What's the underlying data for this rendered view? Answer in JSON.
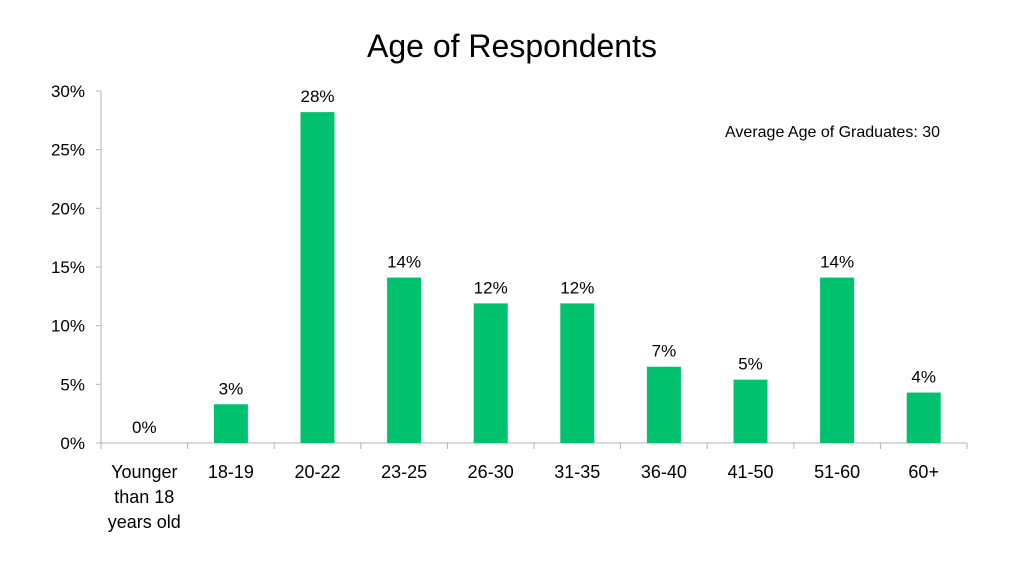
{
  "chart_data": {
    "type": "bar",
    "title": "Age of Respondents",
    "xlabel": "",
    "ylabel": "",
    "ylim": [
      0,
      30
    ],
    "yticks": [
      "0%",
      "5%",
      "10%",
      "15%",
      "20%",
      "25%",
      "30%"
    ],
    "ytick_values": [
      0,
      5,
      10,
      15,
      20,
      25,
      30
    ],
    "categories": [
      [
        "Younger",
        "than 18",
        "years old"
      ],
      [
        "18-19"
      ],
      [
        "20-22"
      ],
      [
        "23-25"
      ],
      [
        "26-30"
      ],
      [
        "31-35"
      ],
      [
        "36-40"
      ],
      [
        "41-50"
      ],
      [
        "51-60"
      ],
      [
        "60+"
      ]
    ],
    "values": [
      0,
      3.3,
      28.2,
      14.1,
      11.9,
      11.9,
      6.5,
      5.4,
      14.1,
      4.3
    ],
    "data_labels": [
      "0%",
      "3%",
      "28%",
      "14%",
      "12%",
      "12%",
      "7%",
      "5%",
      "14%",
      "4%"
    ],
    "bar_color": "#00c16e",
    "grid": false,
    "legend": "none",
    "annotation": "Average Age of Graduates:  30"
  }
}
